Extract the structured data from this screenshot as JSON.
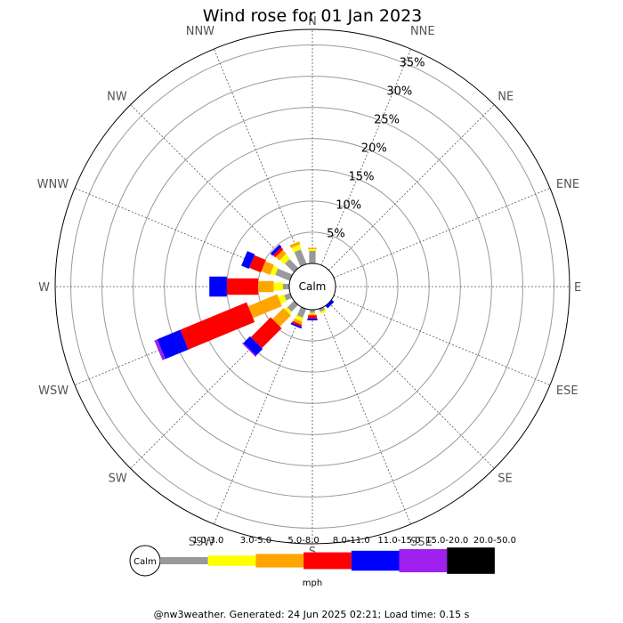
{
  "chart_data": {
    "type": "wind-rose",
    "title": "Wind rose for 01 Jan 2023",
    "calm_label": "Calm",
    "unit": "mph",
    "footer": "@nw3weather. Generated: 24 Jun 2025 02:21; Load time: 0.15 s",
    "directions": [
      "N",
      "NNE",
      "NE",
      "ENE",
      "E",
      "ESE",
      "SE",
      "SSE",
      "S",
      "SSW",
      "SW",
      "WSW",
      "W",
      "WNW",
      "NW",
      "NNW"
    ],
    "radial_ticks": [
      5,
      10,
      15,
      20,
      25,
      30,
      35
    ],
    "radial_tick_labels": [
      "5%",
      "10%",
      "15%",
      "20%",
      "25%",
      "30%",
      "35%"
    ],
    "radial_max": 37.5,
    "speed_bins": [
      {
        "label": "1.0-3.0",
        "color": "#999999"
      },
      {
        "label": "3.0-5.0",
        "color": "#ffff00"
      },
      {
        "label": "5.0-8.0",
        "color": "#ffa500"
      },
      {
        "label": "8.0-11.0",
        "color": "#ff0000"
      },
      {
        "label": "11.0-15.0",
        "color": "#0000ff"
      },
      {
        "label": "15.0-20.0",
        "color": "#a020f0"
      },
      {
        "label": "20.0-50.0",
        "color": "#000000"
      }
    ],
    "series": [
      {
        "direction": "N",
        "values": [
          2.0,
          0.3,
          0.2,
          0,
          0,
          0,
          0
        ]
      },
      {
        "direction": "NNE",
        "values": [
          0,
          0,
          0,
          0,
          0,
          0,
          0
        ]
      },
      {
        "direction": "NE",
        "values": [
          0,
          0,
          0,
          0,
          0,
          0,
          0
        ]
      },
      {
        "direction": "ENE",
        "values": [
          0,
          0,
          0,
          0,
          0,
          0,
          0
        ]
      },
      {
        "direction": "E",
        "values": [
          0,
          0,
          0,
          0,
          0,
          0,
          0
        ]
      },
      {
        "direction": "ESE",
        "values": [
          0,
          0,
          0,
          0,
          0,
          0,
          0
        ]
      },
      {
        "direction": "SE",
        "values": [
          0,
          0,
          0,
          0,
          0.5,
          0,
          0
        ]
      },
      {
        "direction": "SSE",
        "values": [
          0.5,
          0.3,
          0,
          0,
          0,
          0,
          0
        ]
      },
      {
        "direction": "S",
        "values": [
          0.5,
          0.2,
          0.2,
          0.5,
          0.3,
          0,
          0
        ]
      },
      {
        "direction": "SSW",
        "values": [
          1.5,
          0.6,
          0.5,
          0.3,
          0.3,
          0,
          0
        ]
      },
      {
        "direction": "SW",
        "values": [
          1.5,
          0.5,
          2.5,
          4.5,
          1.5,
          0.2,
          0
        ]
      },
      {
        "direction": "WSW",
        "values": [
          1.0,
          1.0,
          5.0,
          11.5,
          4.0,
          0.5,
          0
        ]
      },
      {
        "direction": "W",
        "values": [
          1.0,
          1.5,
          2.5,
          5.0,
          2.8,
          0,
          0
        ]
      },
      {
        "direction": "WNW",
        "values": [
          2.5,
          0.8,
          1.5,
          2.0,
          1.3,
          0,
          0
        ]
      },
      {
        "direction": "NW",
        "values": [
          2.0,
          1.0,
          0.8,
          0.5,
          0.5,
          0,
          0
        ]
      },
      {
        "direction": "NNW",
        "values": [
          2.5,
          0.8,
          0.5,
          0,
          0,
          0,
          0
        ]
      }
    ]
  }
}
